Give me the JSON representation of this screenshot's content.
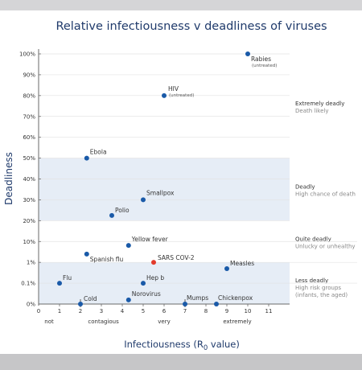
{
  "colors": {
    "point": "#1a5aa8",
    "highlight": "#e23a2b",
    "band_fill": "#e6edf6",
    "axis": "#6a6a6a",
    "grid": "#e2e2e2",
    "text": "#333333",
    "title": "#1f3a6b"
  },
  "chart_data": {
    "type": "scatter",
    "title": "Relative infectiousness v deadliness of viruses",
    "xlabel": "Infectiousness (R",
    "xlabel_sub": "0",
    "xlabel_suffix": " value)",
    "ylabel": "Deadliness",
    "xlim": [
      0,
      12
    ],
    "x_ticks": [
      "0",
      "1",
      "2",
      "3",
      "4",
      "5",
      "6",
      "7",
      "8",
      "9",
      "10",
      "11"
    ],
    "y_ticks": [
      "0%",
      "0.1%",
      "1%",
      "10%",
      "20%",
      "30%",
      "40%",
      "50%",
      "60%",
      "70%",
      "80%",
      "90%",
      "100%"
    ],
    "x_categories": [
      {
        "label": "not",
        "x": 0.5
      },
      {
        "label": "contagious",
        "x": 3.1
      },
      {
        "label": "very",
        "x": 6.0
      },
      {
        "label": "extremely",
        "x": 9.5
      }
    ],
    "bands": [
      {
        "label": "Extremely deadly",
        "sub": "Death likely",
        "range": [
          50,
          100
        ],
        "shaded": false
      },
      {
        "label": "Deadly",
        "sub": "High chance of death",
        "range": [
          20,
          50
        ],
        "shaded": true
      },
      {
        "label": "Quite deadly",
        "sub": "Unlucky or unhealthy",
        "range": [
          1,
          20
        ],
        "shaded": false
      },
      {
        "label": "Less deadly",
        "sub": "High risk groups",
        "sub2": "(infants, the aged)",
        "range": [
          0,
          1
        ],
        "shaded": true
      }
    ],
    "points": [
      {
        "name": "Rabies",
        "note": "(untreated)",
        "x": 10,
        "y": "100%",
        "highlight": false
      },
      {
        "name": "HIV",
        "note": "(untreated)",
        "x": 6,
        "y": "80%",
        "highlight": false
      },
      {
        "name": "Ebola",
        "x": 2.3,
        "y": "50%",
        "highlight": false
      },
      {
        "name": "Smallpox",
        "x": 5,
        "y": "30%",
        "highlight": false
      },
      {
        "name": "Polio",
        "x": 3.5,
        "y": "22.5%",
        "highlight": false
      },
      {
        "name": "Yellow fever",
        "x": 4.3,
        "y": "6.5%",
        "highlight": false
      },
      {
        "name": "Spanish flu",
        "x": 2.3,
        "y": "2.5%",
        "highlight": false
      },
      {
        "name": "SARS COV-2",
        "x": 5.5,
        "y": "1%",
        "highlight": true
      },
      {
        "name": "Measles",
        "x": 9,
        "y": "0.5%",
        "highlight": false
      },
      {
        "name": "Flu",
        "x": 1,
        "y": "0.1%",
        "highlight": false
      },
      {
        "name": "Hep b",
        "x": 5,
        "y": "0.1%",
        "highlight": false
      },
      {
        "name": "Norovirus",
        "x": 4.3,
        "y": "0.02%",
        "highlight": false
      },
      {
        "name": "Cold",
        "x": 2,
        "y": "0%",
        "highlight": false
      },
      {
        "name": "Mumps",
        "x": 7,
        "y": "0%",
        "highlight": false
      },
      {
        "name": "Chickenpox",
        "x": 8.5,
        "y": "0%",
        "highlight": false
      }
    ]
  }
}
